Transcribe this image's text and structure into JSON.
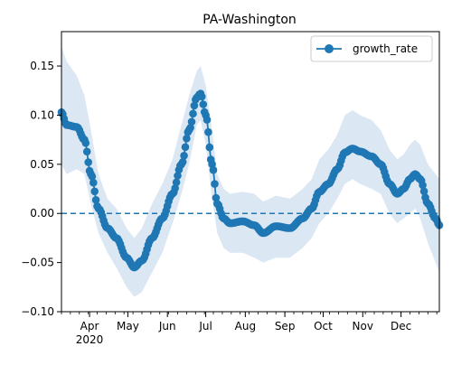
{
  "chart_data": {
    "type": "line",
    "title": "PA-Washington",
    "xlabel": "",
    "ylabel": "",
    "x_range": [
      "2020-03-10",
      "2020-12-31"
    ],
    "ylim": [
      -0.1,
      0.185
    ],
    "y_ticks": [
      -0.1,
      -0.05,
      0.0,
      0.05,
      0.1,
      0.15
    ],
    "y_tick_labels": [
      "−0.10",
      "−0.05",
      "0.00",
      "0.05",
      "0.10",
      "0.15"
    ],
    "x_ticks": [
      {
        "date": "2020-04-01",
        "label": "Apr",
        "sublabel": "2020"
      },
      {
        "date": "2020-05-01",
        "label": "May",
        "sublabel": ""
      },
      {
        "date": "2020-06-01",
        "label": "Jun",
        "sublabel": ""
      },
      {
        "date": "2020-07-01",
        "label": "Jul",
        "sublabel": ""
      },
      {
        "date": "2020-08-01",
        "label": "Aug",
        "sublabel": ""
      },
      {
        "date": "2020-09-01",
        "label": "Sep",
        "sublabel": ""
      },
      {
        "date": "2020-10-01",
        "label": "Oct",
        "sublabel": ""
      },
      {
        "date": "2020-11-01",
        "label": "Nov",
        "sublabel": ""
      },
      {
        "date": "2020-12-01",
        "label": "Dec",
        "sublabel": ""
      }
    ],
    "grid": false,
    "legend": {
      "position": "top-right",
      "entries": [
        "growth_rate"
      ]
    },
    "reference_line": {
      "y": 0.0,
      "style": "dashed"
    },
    "series": [
      {
        "name": "growth_rate",
        "color": "#1f77b4",
        "band_color": "#dbe7f3",
        "keypoints": [
          {
            "x": "2020-03-10",
            "y": 0.103,
            "lo": 0.05,
            "hi": 0.17
          },
          {
            "x": "2020-03-14",
            "y": 0.09,
            "lo": 0.04,
            "hi": 0.155
          },
          {
            "x": "2020-03-22",
            "y": 0.088,
            "lo": 0.045,
            "hi": 0.14
          },
          {
            "x": "2020-03-28",
            "y": 0.075,
            "lo": 0.04,
            "hi": 0.12
          },
          {
            "x": "2020-04-02",
            "y": 0.04,
            "lo": 0.01,
            "hi": 0.085
          },
          {
            "x": "2020-04-08",
            "y": 0.005,
            "lo": -0.02,
            "hi": 0.04
          },
          {
            "x": "2020-04-15",
            "y": -0.015,
            "lo": -0.04,
            "hi": 0.015
          },
          {
            "x": "2020-04-22",
            "y": -0.025,
            "lo": -0.055,
            "hi": 0.005
          },
          {
            "x": "2020-04-30",
            "y": -0.045,
            "lo": -0.075,
            "hi": -0.015
          },
          {
            "x": "2020-05-06",
            "y": -0.055,
            "lo": -0.085,
            "hi": -0.025
          },
          {
            "x": "2020-05-12",
            "y": -0.048,
            "lo": -0.08,
            "hi": -0.015
          },
          {
            "x": "2020-05-20",
            "y": -0.025,
            "lo": -0.06,
            "hi": 0.01
          },
          {
            "x": "2020-05-28",
            "y": -0.005,
            "lo": -0.04,
            "hi": 0.03
          },
          {
            "x": "2020-06-05",
            "y": 0.02,
            "lo": -0.01,
            "hi": 0.055
          },
          {
            "x": "2020-06-12",
            "y": 0.05,
            "lo": 0.02,
            "hi": 0.09
          },
          {
            "x": "2020-06-18",
            "y": 0.085,
            "lo": 0.05,
            "hi": 0.12
          },
          {
            "x": "2020-06-24",
            "y": 0.118,
            "lo": 0.09,
            "hi": 0.145
          },
          {
            "x": "2020-06-27",
            "y": 0.122,
            "lo": 0.095,
            "hi": 0.15
          },
          {
            "x": "2020-07-01",
            "y": 0.1,
            "lo": 0.07,
            "hi": 0.13
          },
          {
            "x": "2020-07-06",
            "y": 0.05,
            "lo": 0.015,
            "hi": 0.085
          },
          {
            "x": "2020-07-10",
            "y": 0.01,
            "lo": -0.02,
            "hi": 0.04
          },
          {
            "x": "2020-07-15",
            "y": -0.005,
            "lo": -0.035,
            "hi": 0.025
          },
          {
            "x": "2020-07-20",
            "y": -0.01,
            "lo": -0.04,
            "hi": 0.02
          },
          {
            "x": "2020-07-30",
            "y": -0.008,
            "lo": -0.04,
            "hi": 0.022
          },
          {
            "x": "2020-08-08",
            "y": -0.012,
            "lo": -0.045,
            "hi": 0.02
          },
          {
            "x": "2020-08-15",
            "y": -0.02,
            "lo": -0.05,
            "hi": 0.012
          },
          {
            "x": "2020-08-25",
            "y": -0.013,
            "lo": -0.045,
            "hi": 0.018
          },
          {
            "x": "2020-09-05",
            "y": -0.015,
            "lo": -0.045,
            "hi": 0.015
          },
          {
            "x": "2020-09-15",
            "y": -0.005,
            "lo": -0.035,
            "hi": 0.025
          },
          {
            "x": "2020-09-22",
            "y": 0.005,
            "lo": -0.025,
            "hi": 0.035
          },
          {
            "x": "2020-09-28",
            "y": 0.022,
            "lo": -0.01,
            "hi": 0.055
          },
          {
            "x": "2020-10-05",
            "y": 0.03,
            "lo": 0.0,
            "hi": 0.065
          },
          {
            "x": "2020-10-12",
            "y": 0.045,
            "lo": 0.015,
            "hi": 0.08
          },
          {
            "x": "2020-10-18",
            "y": 0.062,
            "lo": 0.03,
            "hi": 0.1
          },
          {
            "x": "2020-10-24",
            "y": 0.066,
            "lo": 0.035,
            "hi": 0.105
          },
          {
            "x": "2020-10-30",
            "y": 0.063,
            "lo": 0.03,
            "hi": 0.1
          },
          {
            "x": "2020-11-08",
            "y": 0.058,
            "lo": 0.025,
            "hi": 0.095
          },
          {
            "x": "2020-11-15",
            "y": 0.05,
            "lo": 0.02,
            "hi": 0.085
          },
          {
            "x": "2020-11-22",
            "y": 0.03,
            "lo": 0.0,
            "hi": 0.065
          },
          {
            "x": "2020-11-28",
            "y": 0.02,
            "lo": -0.01,
            "hi": 0.055
          },
          {
            "x": "2020-12-03",
            "y": 0.025,
            "lo": -0.005,
            "hi": 0.06
          },
          {
            "x": "2020-12-08",
            "y": 0.035,
            "lo": 0.0,
            "hi": 0.07
          },
          {
            "x": "2020-12-12",
            "y": 0.04,
            "lo": 0.005,
            "hi": 0.075
          },
          {
            "x": "2020-12-16",
            "y": 0.035,
            "lo": -0.005,
            "hi": 0.07
          },
          {
            "x": "2020-12-22",
            "y": 0.01,
            "lo": -0.03,
            "hi": 0.05
          },
          {
            "x": "2020-12-28",
            "y": -0.005,
            "lo": -0.05,
            "hi": 0.04
          },
          {
            "x": "2020-12-31",
            "y": -0.012,
            "lo": -0.06,
            "hi": 0.035
          }
        ]
      }
    ]
  }
}
